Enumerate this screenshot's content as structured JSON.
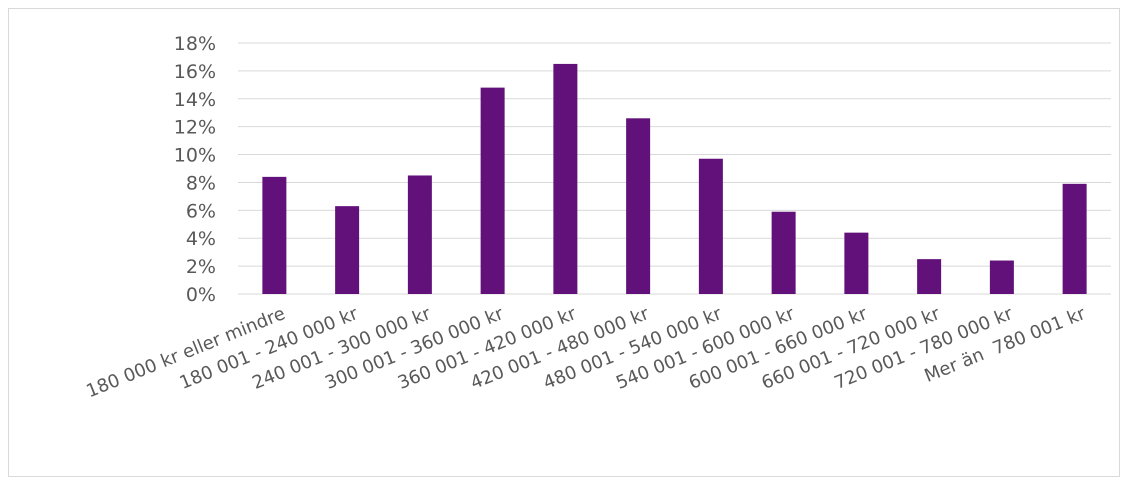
{
  "chart_data": {
    "type": "bar",
    "title": "",
    "xlabel": "",
    "ylabel": "",
    "categories": [
      "180 000 kr eller mindre",
      "180 001 - 240 000 kr",
      "240 001 - 300 000 kr",
      "300 001 - 360 000 kr",
      "360 001 - 420 000 kr",
      "420 001 - 480 000 kr",
      "480 001 - 540 000 kr",
      "540 001 - 600 000 kr",
      "600 001 - 660 000 kr",
      "660 001 - 720 000 kr",
      "720 001 - 780 000 kr",
      "Mer än  780 001 kr"
    ],
    "values": [
      8.4,
      6.3,
      8.5,
      14.8,
      16.5,
      12.6,
      9.7,
      5.9,
      4.4,
      2.5,
      2.4,
      7.9
    ],
    "ylim": [
      0,
      18
    ],
    "yticks": [
      0,
      2,
      4,
      6,
      8,
      10,
      12,
      14,
      16,
      18
    ],
    "ytick_labels": [
      "0%",
      "2%",
      "4%",
      "6%",
      "8%",
      "10%",
      "12%",
      "14%",
      "16%",
      "18%"
    ],
    "grid": true,
    "legend": "none",
    "bar_color": "#62107a",
    "grid_color": "#d9d9d9"
  }
}
